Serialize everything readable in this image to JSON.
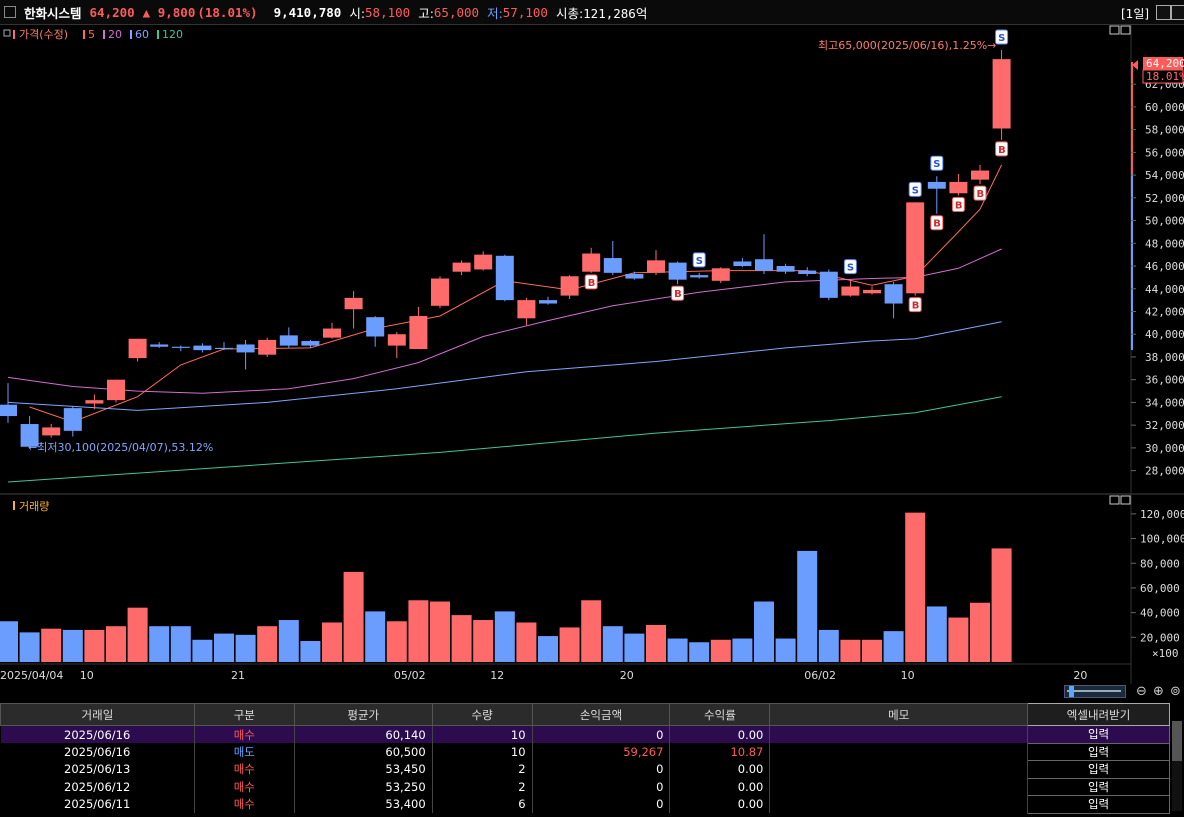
{
  "header": {
    "stock_name": "한화시스템",
    "price": "64,200",
    "change": "▲ 9,800",
    "change_pct": "(18.01%)",
    "volume": "9,410,780",
    "open_label": "시:",
    "open": "58,100",
    "high_label": "고:",
    "high": "65,000",
    "low_label": "저:",
    "low": "57,100",
    "mcap_label": "시총:",
    "mcap": "121,286억",
    "period": "[1일]"
  },
  "price_panel": {
    "legend_title": "가격(수정)",
    "ma_labels": [
      "5",
      "20",
      "60",
      "120"
    ],
    "max_note": "최고65,000(2025/06/16),1.25%→",
    "min_note": "←최저30,100(2025/04/07),53.12%",
    "price_tag": "64,200",
    "pct_tag": "18.01%",
    "y_ticks": [
      "62,000",
      "60,000",
      "58,000",
      "56,000",
      "54,000",
      "52,000",
      "50,000",
      "48,000",
      "46,000",
      "44,000",
      "42,000",
      "40,000",
      "38,000",
      "36,000",
      "34,000",
      "32,000",
      "30,000",
      "28,000"
    ]
  },
  "volume_panel": {
    "legend_title": "거래량",
    "y_ticks": [
      "120,000",
      "100,000",
      "80,000",
      "60,000",
      "40,000",
      "20,000"
    ],
    "unit": "×100"
  },
  "x_axis_labels": [
    "2025/04/04",
    "10",
    "21",
    "05/02",
    "12",
    "20",
    "06/02",
    "10",
    "20"
  ],
  "colors": {
    "up": "#ff6b6b",
    "down": "#6b9dff",
    "ma5": "#ff6b55",
    "ma20": "#d070d0",
    "ma60": "#7ea7ff",
    "ma120": "#3fc79a",
    "selected_row": "#2d0b4f"
  },
  "trade_table": {
    "columns": [
      "거래일",
      "구분",
      "평균가",
      "수량",
      "손익금액",
      "수익률",
      "메모"
    ],
    "excel_button": "엑셀내려받기",
    "memo_button": "입력",
    "rows": [
      {
        "date": "2025/06/16",
        "type": "매수",
        "avg": "60,140",
        "qty": "10",
        "pnl": "0",
        "rate": "0.00"
      },
      {
        "date": "2025/06/16",
        "type": "매도",
        "avg": "60,500",
        "qty": "10",
        "pnl": "59,267",
        "rate": "10.87"
      },
      {
        "date": "2025/06/13",
        "type": "매수",
        "avg": "53,450",
        "qty": "2",
        "pnl": "0",
        "rate": "0.00"
      },
      {
        "date": "2025/06/12",
        "type": "매수",
        "avg": "53,250",
        "qty": "2",
        "pnl": "0",
        "rate": "0.00"
      },
      {
        "date": "2025/06/11",
        "type": "매수",
        "avg": "53,400",
        "qty": "6",
        "pnl": "0",
        "rate": "0.00"
      }
    ]
  },
  "chart_data": {
    "type": "candlestick",
    "title": "한화시스템",
    "ylim": [
      27000,
      66500
    ],
    "candles": [
      {
        "o": 33800,
        "c": 32800,
        "h": 35700,
        "l": 32200,
        "v": 33000
      },
      {
        "o": 32100,
        "c": 30100,
        "h": 32800,
        "l": 30100,
        "v": 24000
      },
      {
        "o": 31100,
        "c": 31800,
        "h": 32100,
        "l": 30900,
        "v": 27000
      },
      {
        "o": 33500,
        "c": 31500,
        "h": 33700,
        "l": 31000,
        "v": 26000
      },
      {
        "o": 33900,
        "c": 34200,
        "h": 34700,
        "l": 33400,
        "v": 26000
      },
      {
        "o": 34200,
        "c": 36000,
        "h": 36000,
        "l": 34000,
        "v": 29000
      },
      {
        "o": 37900,
        "c": 39600,
        "h": 39600,
        "l": 37600,
        "v": 44000
      },
      {
        "o": 39100,
        "c": 38900,
        "h": 39300,
        "l": 38800,
        "v": 29000
      },
      {
        "o": 38900,
        "c": 38800,
        "h": 39000,
        "l": 38500,
        "v": 29000
      },
      {
        "o": 39000,
        "c": 38600,
        "h": 39200,
        "l": 38400,
        "v": 18000
      },
      {
        "o": 38800,
        "c": 38700,
        "h": 39300,
        "l": 38600,
        "v": 23000
      },
      {
        "o": 39100,
        "c": 38400,
        "h": 39500,
        "l": 36900,
        "v": 22000
      },
      {
        "o": 38200,
        "c": 39500,
        "h": 39700,
        "l": 38000,
        "v": 29000
      },
      {
        "o": 39900,
        "c": 39000,
        "h": 40600,
        "l": 38800,
        "v": 34000
      },
      {
        "o": 39400,
        "c": 39000,
        "h": 39500,
        "l": 38800,
        "v": 17000
      },
      {
        "o": 39700,
        "c": 40500,
        "h": 41000,
        "l": 39600,
        "v": 32000
      },
      {
        "o": 42200,
        "c": 43200,
        "h": 43800,
        "l": 40500,
        "v": 73000
      },
      {
        "o": 41500,
        "c": 39800,
        "h": 41600,
        "l": 38900,
        "v": 41000
      },
      {
        "o": 39000,
        "c": 40000,
        "h": 40200,
        "l": 37900,
        "v": 33000
      },
      {
        "o": 38700,
        "c": 41600,
        "h": 42400,
        "l": 38700,
        "v": 50000
      },
      {
        "o": 42500,
        "c": 44900,
        "h": 45100,
        "l": 42300,
        "v": 49000
      },
      {
        "o": 45500,
        "c": 46300,
        "h": 46500,
        "l": 45200,
        "v": 38000
      },
      {
        "o": 45700,
        "c": 47000,
        "h": 47300,
        "l": 45600,
        "v": 34000
      },
      {
        "o": 46900,
        "c": 43000,
        "h": 47000,
        "l": 42900,
        "v": 41000
      },
      {
        "o": 41400,
        "c": 43000,
        "h": 43200,
        "l": 40800,
        "v": 32000
      },
      {
        "o": 43000,
        "c": 42700,
        "h": 43300,
        "l": 42600,
        "v": 21000
      },
      {
        "o": 43400,
        "c": 45100,
        "h": 45200,
        "l": 43100,
        "v": 28000
      },
      {
        "o": 45500,
        "c": 47100,
        "h": 47600,
        "l": 45400,
        "v": 50000
      },
      {
        "o": 46700,
        "c": 45400,
        "h": 48200,
        "l": 45200,
        "v": 29000
      },
      {
        "o": 45300,
        "c": 44900,
        "h": 45500,
        "l": 44800,
        "v": 23000
      },
      {
        "o": 45400,
        "c": 46500,
        "h": 47400,
        "l": 45200,
        "v": 30000
      },
      {
        "o": 46300,
        "c": 44800,
        "h": 46400,
        "l": 44400,
        "v": 19000
      },
      {
        "o": 45200,
        "c": 45000,
        "h": 45400,
        "l": 44900,
        "v": 16000
      },
      {
        "o": 44700,
        "c": 45800,
        "h": 45900,
        "l": 44500,
        "v": 18000
      },
      {
        "o": 46400,
        "c": 46000,
        "h": 46700,
        "l": 45900,
        "v": 19000
      },
      {
        "o": 46600,
        "c": 45600,
        "h": 48800,
        "l": 45300,
        "v": 49000
      },
      {
        "o": 46000,
        "c": 45500,
        "h": 46200,
        "l": 45300,
        "v": 19000
      },
      {
        "o": 45600,
        "c": 45300,
        "h": 45900,
        "l": 45100,
        "v": 90000
      },
      {
        "o": 45500,
        "c": 43200,
        "h": 45700,
        "l": 43000,
        "v": 26000
      },
      {
        "o": 43400,
        "c": 44200,
        "h": 44800,
        "l": 43300,
        "v": 18000
      },
      {
        "o": 43600,
        "c": 43900,
        "h": 44200,
        "l": 43500,
        "v": 18000
      },
      {
        "o": 44400,
        "c": 42700,
        "h": 44600,
        "l": 41400,
        "v": 25000
      },
      {
        "o": 43600,
        "c": 51600,
        "h": 51600,
        "l": 43400,
        "v": 121000
      },
      {
        "o": 53400,
        "c": 52800,
        "h": 53900,
        "l": 50600,
        "v": 45000
      },
      {
        "o": 52400,
        "c": 53400,
        "h": 54100,
        "l": 52200,
        "v": 36000
      },
      {
        "o": 53600,
        "c": 54400,
        "h": 54900,
        "l": 53200,
        "v": 48000
      },
      {
        "o": 58100,
        "c": 64200,
        "h": 65000,
        "l": 57100,
        "v": 92000
      }
    ],
    "moving_averages": [
      {
        "name": "5",
        "values": [
          {
            "i": 1,
            "y": 33600
          },
          {
            "i": 3,
            "y": 32300
          },
          {
            "i": 6,
            "y": 34500
          },
          {
            "i": 8,
            "y": 37300
          },
          {
            "i": 10,
            "y": 38700
          },
          {
            "i": 14,
            "y": 38800
          },
          {
            "i": 17,
            "y": 40500
          },
          {
            "i": 20,
            "y": 41600
          },
          {
            "i": 23,
            "y": 44700
          },
          {
            "i": 26,
            "y": 43900
          },
          {
            "i": 29,
            "y": 45400
          },
          {
            "i": 33,
            "y": 45600
          },
          {
            "i": 37,
            "y": 45600
          },
          {
            "i": 40,
            "y": 44300
          },
          {
            "i": 42,
            "y": 45100
          },
          {
            "i": 44,
            "y": 49000
          },
          {
            "i": 45,
            "y": 51000
          },
          {
            "i": 46,
            "y": 54900
          }
        ]
      },
      {
        "name": "20",
        "values": [
          {
            "i": 0,
            "y": 36200
          },
          {
            "i": 3,
            "y": 35400
          },
          {
            "i": 6,
            "y": 35000
          },
          {
            "i": 9,
            "y": 34800
          },
          {
            "i": 13,
            "y": 35200
          },
          {
            "i": 16,
            "y": 36100
          },
          {
            "i": 19,
            "y": 37500
          },
          {
            "i": 22,
            "y": 39800
          },
          {
            "i": 25,
            "y": 41200
          },
          {
            "i": 28,
            "y": 42500
          },
          {
            "i": 32,
            "y": 43700
          },
          {
            "i": 36,
            "y": 44600
          },
          {
            "i": 40,
            "y": 44900
          },
          {
            "i": 42,
            "y": 45000
          },
          {
            "i": 44,
            "y": 45800
          },
          {
            "i": 46,
            "y": 47500
          }
        ]
      },
      {
        "name": "60",
        "values": [
          {
            "i": 0,
            "y": 34000
          },
          {
            "i": 6,
            "y": 33300
          },
          {
            "i": 12,
            "y": 34000
          },
          {
            "i": 18,
            "y": 35200
          },
          {
            "i": 24,
            "y": 36700
          },
          {
            "i": 30,
            "y": 37600
          },
          {
            "i": 36,
            "y": 38800
          },
          {
            "i": 40,
            "y": 39400
          },
          {
            "i": 42,
            "y": 39600
          },
          {
            "i": 46,
            "y": 41100
          }
        ]
      },
      {
        "name": "120",
        "values": [
          {
            "i": 0,
            "y": 27000
          },
          {
            "i": 10,
            "y": 28300
          },
          {
            "i": 20,
            "y": 29600
          },
          {
            "i": 30,
            "y": 31300
          },
          {
            "i": 38,
            "y": 32400
          },
          {
            "i": 42,
            "y": 33100
          },
          {
            "i": 46,
            "y": 34500
          }
        ]
      }
    ],
    "trade_markers": [
      {
        "i": 27,
        "type": "B"
      },
      {
        "i": 31,
        "type": "B"
      },
      {
        "i": 32,
        "type": "S"
      },
      {
        "i": 39,
        "type": "S"
      },
      {
        "i": 42,
        "type": "S"
      },
      {
        "i": 42,
        "type": "B"
      },
      {
        "i": 43,
        "type": "S"
      },
      {
        "i": 43,
        "type": "B"
      },
      {
        "i": 44,
        "type": "B"
      },
      {
        "i": 45,
        "type": "B"
      },
      {
        "i": 46,
        "type": "S"
      },
      {
        "i": 46,
        "type": "B"
      }
    ],
    "volume_ylim": [
      0,
      128000
    ]
  }
}
